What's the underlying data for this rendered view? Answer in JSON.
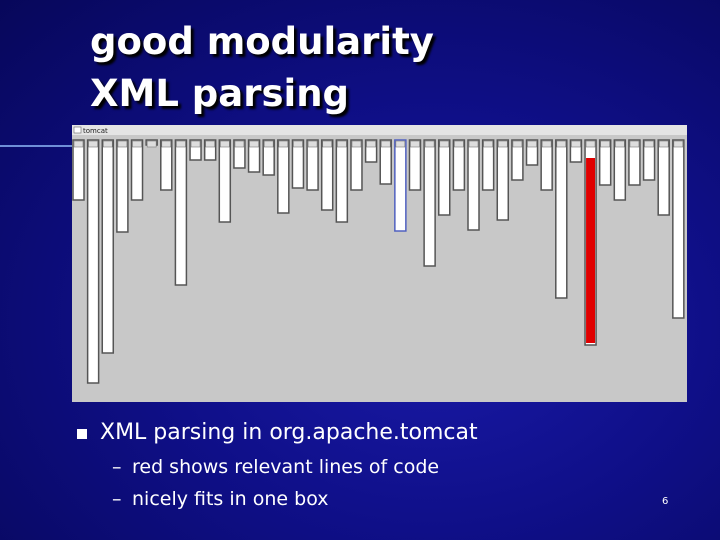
{
  "slide": {
    "title_lines": [
      "good modularity",
      "XML parsing"
    ],
    "figure": {
      "window_label": "tomcat"
    },
    "bullet": "XML parsing in org.apache.tomcat",
    "sub_bullets": [
      "red shows relevant lines of code",
      "nicely fits in one box"
    ],
    "page_number": "6"
  }
}
